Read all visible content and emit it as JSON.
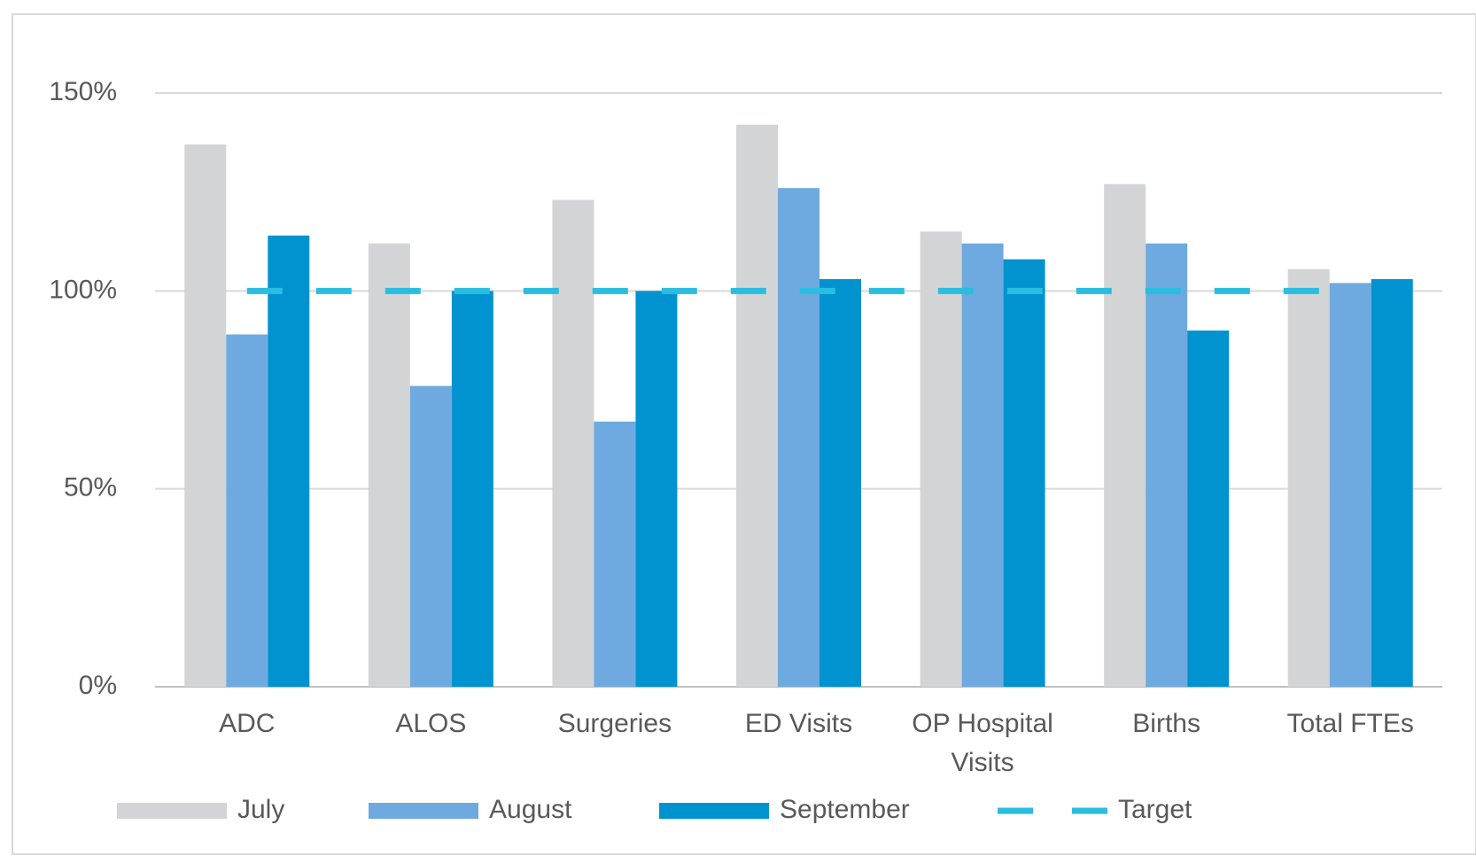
{
  "chart_data": {
    "type": "bar",
    "categories": [
      "ADC",
      "ALOS",
      "Surgeries",
      "ED Visits",
      "OP Hospital Visits",
      "Births",
      "Total FTEs"
    ],
    "series": [
      {
        "name": "July",
        "color": "#d3d4d6",
        "values": [
          137,
          112,
          123,
          142,
          115,
          127,
          105.5
        ]
      },
      {
        "name": "August",
        "color": "#6eaadf",
        "values": [
          89,
          76,
          67,
          126,
          112,
          112,
          102
        ]
      },
      {
        "name": "September",
        "color": "#0093d0",
        "values": [
          114,
          100,
          100,
          103,
          108,
          90,
          103
        ]
      },
      {
        "name": "Target",
        "type": "line",
        "dashed": true,
        "color": "#29bde0",
        "values": [
          100,
          100,
          100,
          100,
          100,
          100,
          100
        ]
      }
    ],
    "ylim": [
      0,
      150
    ],
    "yticks": [
      {
        "value": 0,
        "label": "0%"
      },
      {
        "value": 50,
        "label": "50%"
      },
      {
        "value": 100,
        "label": "100%"
      },
      {
        "value": 150,
        "label": "150%"
      }
    ],
    "grid": true,
    "legend": "bottom"
  }
}
